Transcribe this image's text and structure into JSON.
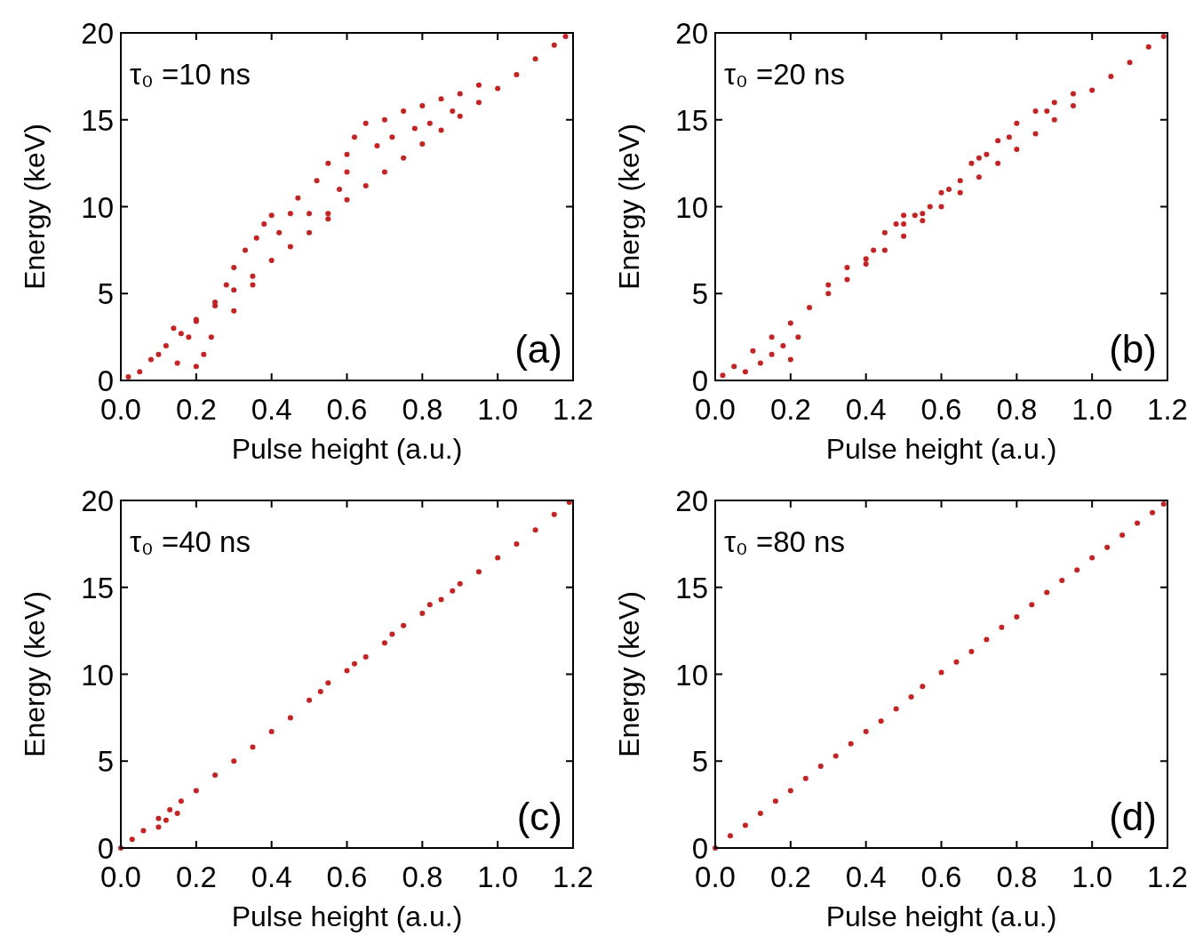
{
  "chart_data": [
    {
      "type": "scatter",
      "title": "τ₀ =10 ns",
      "xlabel": "Pulse height (a.u.)",
      "ylabel": "Energy (keV)",
      "annotations": [
        "(a)"
      ],
      "xlim": [
        0,
        1.2
      ],
      "ylim": [
        0,
        20
      ],
      "xticks": [
        {
          "value": 0,
          "label": "0.0"
        },
        {
          "value": 0.2,
          "label": "0.2"
        },
        {
          "value": 0.4,
          "label": "0.4"
        },
        {
          "value": 0.6,
          "label": "0.6"
        },
        {
          "value": 0.8,
          "label": "0.8"
        },
        {
          "value": 1,
          "label": "1.0"
        },
        {
          "value": 1.2,
          "label": "1.2"
        }
      ],
      "yticks": [
        0,
        5,
        10,
        15,
        20
      ],
      "marker": "circle",
      "series": [
        {
          "color": "#cc2020",
          "x": [
            0.02,
            0.05,
            0.08,
            0.12,
            0.16,
            0.2,
            0.25,
            0.3,
            0.35,
            0.4,
            0.45,
            0.5,
            0.55,
            0.6,
            0.65,
            0.7,
            0.75,
            0.8,
            0.85,
            0.9,
            0.95,
            1.0,
            1.05,
            1.1,
            1.15,
            1.18,
            0.1,
            0.15,
            0.2,
            0.22,
            0.18,
            0.14,
            0.2,
            0.24,
            0.25,
            0.28,
            0.3,
            0.33,
            0.36,
            0.38,
            0.4,
            0.45,
            0.5,
            0.55,
            0.42,
            0.47,
            0.52,
            0.55,
            0.6,
            0.62,
            0.65,
            0.6,
            0.68,
            0.7,
            0.72,
            0.75,
            0.8,
            0.78,
            0.85,
            0.82,
            0.9,
            0.88,
            0.95,
            0.58,
            0.3,
            0.35
          ],
          "values": [
            0.2,
            0.5,
            1.2,
            2.0,
            2.7,
            3.4,
            4.3,
            5.2,
            6.0,
            6.9,
            7.7,
            8.5,
            9.3,
            10.4,
            11.2,
            12.0,
            12.8,
            13.6,
            14.4,
            15.2,
            16.0,
            16.8,
            17.6,
            18.5,
            19.3,
            19.8,
            1.5,
            1.0,
            0.8,
            1.5,
            2.5,
            3.0,
            3.5,
            2.5,
            4.5,
            5.5,
            6.5,
            7.5,
            8.2,
            9.0,
            9.5,
            9.6,
            9.6,
            9.6,
            8.5,
            10.5,
            11.5,
            12.5,
            13.0,
            14.0,
            14.8,
            12.0,
            13.5,
            15.0,
            14.0,
            15.5,
            15.8,
            14.5,
            16.2,
            14.8,
            16.5,
            15.5,
            17.0,
            11.0,
            4.0,
            5.5
          ]
        }
      ]
    },
    {
      "type": "scatter",
      "title": "τ₀ =20 ns",
      "xlabel": "Pulse height (a.u.)",
      "ylabel": "Energy (keV)",
      "annotations": [
        "(b)"
      ],
      "xlim": [
        0,
        1.2
      ],
      "ylim": [
        0,
        20
      ],
      "xticks": [
        {
          "value": 0,
          "label": "0.0"
        },
        {
          "value": 0.2,
          "label": "0.2"
        },
        {
          "value": 0.4,
          "label": "0.4"
        },
        {
          "value": 0.6,
          "label": "0.6"
        },
        {
          "value": 0.8,
          "label": "0.8"
        },
        {
          "value": 1,
          "label": "1.0"
        },
        {
          "value": 1.2,
          "label": "1.2"
        }
      ],
      "yticks": [
        0,
        5,
        10,
        15,
        20
      ],
      "marker": "circle",
      "series": [
        {
          "color": "#cc2020",
          "x": [
            0.02,
            0.05,
            0.1,
            0.15,
            0.2,
            0.25,
            0.3,
            0.35,
            0.4,
            0.45,
            0.5,
            0.55,
            0.6,
            0.65,
            0.7,
            0.75,
            0.8,
            0.85,
            0.9,
            0.95,
            1.0,
            1.05,
            1.1,
            1.15,
            1.19,
            0.08,
            0.12,
            0.15,
            0.18,
            0.2,
            0.22,
            0.3,
            0.35,
            0.42,
            0.45,
            0.48,
            0.5,
            0.5,
            0.53,
            0.55,
            0.6,
            0.62,
            0.65,
            0.68,
            0.7,
            0.72,
            0.75,
            0.78,
            0.8,
            0.85,
            0.88,
            0.9,
            0.95,
            0.57,
            0.4
          ],
          "values": [
            0.3,
            0.8,
            1.7,
            2.5,
            3.3,
            4.2,
            5.0,
            5.8,
            6.7,
            7.5,
            8.3,
            9.2,
            10.0,
            10.8,
            11.7,
            12.5,
            13.3,
            14.2,
            15.0,
            15.8,
            16.7,
            17.5,
            18.3,
            19.2,
            19.8,
            0.5,
            1.0,
            1.5,
            2.0,
            1.2,
            2.5,
            5.5,
            6.5,
            7.5,
            8.5,
            9.0,
            9.5,
            9.0,
            9.5,
            9.6,
            10.8,
            11.0,
            11.5,
            12.5,
            12.8,
            13.0,
            13.8,
            14.0,
            14.8,
            15.5,
            15.5,
            16.0,
            16.5,
            10.0,
            7.0
          ]
        }
      ]
    },
    {
      "type": "scatter",
      "title": "τ₀ =40 ns",
      "xlabel": "Pulse height (a.u.)",
      "ylabel": "Energy (keV)",
      "annotations": [
        "(c)"
      ],
      "xlim": [
        0,
        1.2
      ],
      "ylim": [
        0,
        20
      ],
      "xticks": [
        {
          "value": 0,
          "label": "0.0"
        },
        {
          "value": 0.2,
          "label": "0.2"
        },
        {
          "value": 0.4,
          "label": "0.4"
        },
        {
          "value": 0.6,
          "label": "0.6"
        },
        {
          "value": 0.8,
          "label": "0.8"
        },
        {
          "value": 1,
          "label": "1.0"
        },
        {
          "value": 1.2,
          "label": "1.2"
        }
      ],
      "yticks": [
        0,
        5,
        10,
        15,
        20
      ],
      "marker": "circle",
      "series": [
        {
          "color": "#cc2020",
          "x": [
            0.0,
            0.03,
            0.06,
            0.1,
            0.13,
            0.16,
            0.2,
            0.25,
            0.3,
            0.35,
            0.4,
            0.45,
            0.5,
            0.53,
            0.55,
            0.6,
            0.65,
            0.7,
            0.75,
            0.8,
            0.85,
            0.9,
            0.95,
            1.0,
            1.05,
            1.1,
            1.15,
            1.19,
            0.1,
            0.12,
            0.15,
            0.62,
            0.72,
            0.82,
            0.88
          ],
          "values": [
            0.0,
            0.5,
            1.0,
            1.7,
            2.2,
            2.7,
            3.3,
            4.2,
            5.0,
            5.8,
            6.7,
            7.5,
            8.5,
            9.0,
            9.5,
            10.2,
            11.0,
            11.8,
            12.8,
            13.5,
            14.3,
            15.2,
            15.9,
            16.7,
            17.5,
            18.3,
            19.2,
            19.9,
            1.2,
            1.6,
            2.0,
            10.6,
            12.3,
            14.0,
            14.8
          ]
        }
      ]
    },
    {
      "type": "scatter",
      "title": "τ₀ =80 ns",
      "xlabel": "Pulse height (a.u.)",
      "ylabel": "Energy (keV)",
      "annotations": [
        "(d)"
      ],
      "xlim": [
        0,
        1.2
      ],
      "ylim": [
        0,
        20
      ],
      "xticks": [
        {
          "value": 0,
          "label": "0.0"
        },
        {
          "value": 0.2,
          "label": "0.2"
        },
        {
          "value": 0.4,
          "label": "0.4"
        },
        {
          "value": 0.6,
          "label": "0.6"
        },
        {
          "value": 0.8,
          "label": "0.8"
        },
        {
          "value": 1,
          "label": "1.0"
        },
        {
          "value": 1.2,
          "label": "1.2"
        }
      ],
      "yticks": [
        0,
        5,
        10,
        15,
        20
      ],
      "marker": "circle",
      "series": [
        {
          "color": "#cc2020",
          "x": [
            0.0,
            0.04,
            0.08,
            0.12,
            0.16,
            0.2,
            0.24,
            0.28,
            0.32,
            0.36,
            0.4,
            0.44,
            0.48,
            0.52,
            0.55,
            0.6,
            0.64,
            0.68,
            0.72,
            0.76,
            0.8,
            0.84,
            0.88,
            0.92,
            0.96,
            1.0,
            1.04,
            1.08,
            1.12,
            1.16,
            1.19
          ],
          "values": [
            0.0,
            0.7,
            1.3,
            2.0,
            2.7,
            3.3,
            4.0,
            4.7,
            5.3,
            6.0,
            6.7,
            7.3,
            8.0,
            8.7,
            9.3,
            10.1,
            10.7,
            11.3,
            12.0,
            12.7,
            13.3,
            14.0,
            14.7,
            15.4,
            16.0,
            16.7,
            17.3,
            18.0,
            18.7,
            19.3,
            19.8
          ]
        }
      ]
    }
  ]
}
